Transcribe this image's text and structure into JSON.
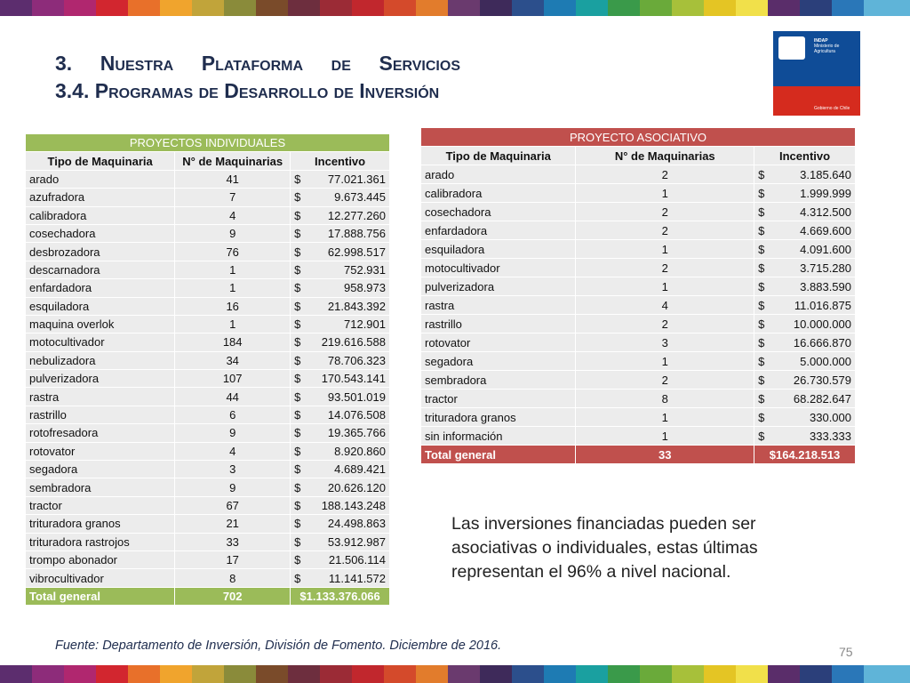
{
  "header": {
    "line1": "3. Nuestra Plataforma de Servicios",
    "line2": "3.4. Programas de Desarrollo de Inversión"
  },
  "logo": {
    "org": "INDAP",
    "ministry": "Ministerio de Agricultura",
    "gov": "Gobierno de Chile"
  },
  "individual": {
    "title": "PROYECTOS INDIVIDUALES",
    "columns": [
      "Tipo de Maquinaria",
      "N° de Maquinarias",
      "Incentivo"
    ],
    "currency": "$",
    "rows": [
      [
        "arado",
        "41",
        "77.021.361"
      ],
      [
        "azufradora",
        "7",
        "9.673.445"
      ],
      [
        "calibradora",
        "4",
        "12.277.260"
      ],
      [
        "cosechadora",
        "9",
        "17.888.756"
      ],
      [
        "desbrozadora",
        "76",
        "62.998.517"
      ],
      [
        "descarnadora",
        "1",
        "752.931"
      ],
      [
        "enfardadora",
        "1",
        "958.973"
      ],
      [
        "esquiladora",
        "16",
        "21.843.392"
      ],
      [
        "maquina overlok",
        "1",
        "712.901"
      ],
      [
        "motocultivador",
        "184",
        "219.616.588"
      ],
      [
        "nebulizadora",
        "34",
        "78.706.323"
      ],
      [
        "pulverizadora",
        "107",
        "170.543.141"
      ],
      [
        "rastra",
        "44",
        "93.501.019"
      ],
      [
        "rastrillo",
        "6",
        "14.076.508"
      ],
      [
        "rotofresadora",
        "9",
        "19.365.766"
      ],
      [
        "rotovator",
        "4",
        "8.920.860"
      ],
      [
        "segadora",
        "3",
        "4.689.421"
      ],
      [
        "sembradora",
        "9",
        "20.626.120"
      ],
      [
        "tractor",
        "67",
        "188.143.248"
      ],
      [
        "trituradora granos",
        "21",
        "24.498.863"
      ],
      [
        "trituradora rastrojos",
        "33",
        "53.912.987"
      ],
      [
        "trompo abonador",
        "17",
        "21.506.114"
      ],
      [
        "vibrocultivador",
        "8",
        "11.141.572"
      ]
    ],
    "total": [
      "Total general",
      "702",
      "$1.133.376.066"
    ]
  },
  "associative": {
    "title": "PROYECTO ASOCIATIVO",
    "columns": [
      "Tipo de Maquinaria",
      "N° de Maquinarias",
      "Incentivo"
    ],
    "currency": "$",
    "rows": [
      [
        "arado",
        "2",
        "3.185.640"
      ],
      [
        "calibradora",
        "1",
        "1.999.999"
      ],
      [
        "cosechadora",
        "2",
        "4.312.500"
      ],
      [
        "enfardadora",
        "2",
        "4.669.600"
      ],
      [
        "esquiladora",
        "1",
        "4.091.600"
      ],
      [
        "motocultivador",
        "2",
        "3.715.280"
      ],
      [
        "pulverizadora",
        "1",
        "3.883.590"
      ],
      [
        "rastra",
        "4",
        "11.016.875"
      ],
      [
        "rastrillo",
        "2",
        "10.000.000"
      ],
      [
        "rotovator",
        "3",
        "16.666.870"
      ],
      [
        "segadora",
        "1",
        "5.000.000"
      ],
      [
        "sembradora",
        "2",
        "26.730.579"
      ],
      [
        "tractor",
        "8",
        "68.282.647"
      ],
      [
        "trituradora granos",
        "1",
        "330.000"
      ],
      [
        "sin información",
        "1",
        "333.333"
      ]
    ],
    "total": [
      "Total general",
      "33",
      "$164.218.513"
    ]
  },
  "note": "Las inversiones financiadas pueden ser asociativas o individuales, estas últimas representan el 96% a nivel nacional.",
  "source": "Fuente: Departamento de Inversión, División de Fomento. Diciembre de 2016.",
  "page": "75"
}
